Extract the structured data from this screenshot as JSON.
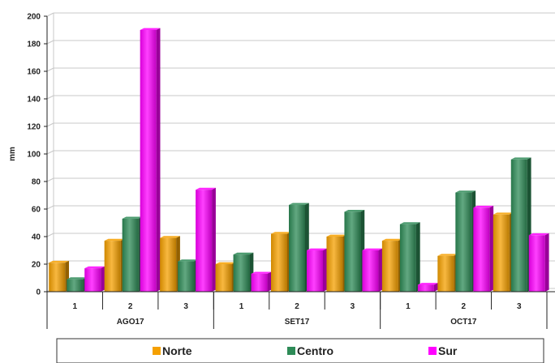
{
  "chart_data": {
    "type": "bar",
    "ylabel": "mm",
    "ylim": [
      0,
      200
    ],
    "yticks": [
      0,
      20,
      40,
      60,
      80,
      100,
      120,
      140,
      160,
      180,
      200
    ],
    "grid": true,
    "legend_position": "bottom",
    "groups": [
      {
        "label": "AGO17",
        "categories": [
          "1",
          "2",
          "3"
        ]
      },
      {
        "label": "SET17",
        "categories": [
          "1",
          "2",
          "3"
        ]
      },
      {
        "label": "OCT17",
        "categories": [
          "1",
          "2",
          "3"
        ]
      }
    ],
    "series": [
      {
        "name": "Norte",
        "color": "#f5a000",
        "values": [
          21,
          37,
          39,
          20,
          42,
          40,
          37,
          26,
          56
        ]
      },
      {
        "name": "Centro",
        "color": "#2e8b57",
        "values": [
          9,
          53,
          22,
          27,
          63,
          58,
          49,
          72,
          96
        ]
      },
      {
        "name": "Sur",
        "color": "#ff00ff",
        "values": [
          17,
          190,
          74,
          13,
          30,
          30,
          5,
          61,
          41
        ]
      }
    ]
  }
}
